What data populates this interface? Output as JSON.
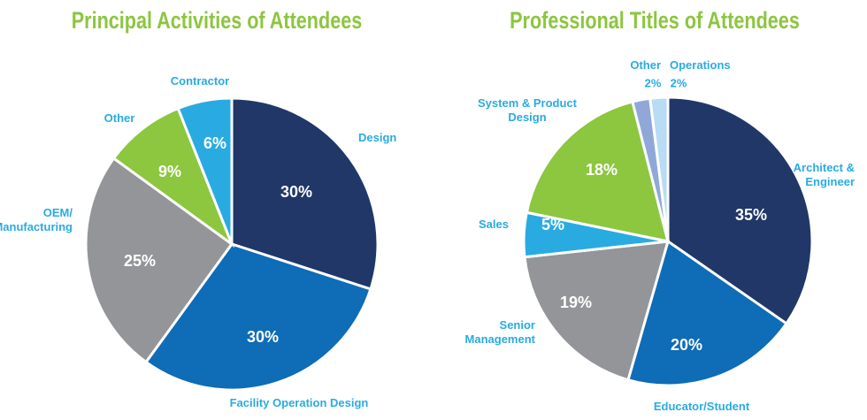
{
  "chart_data": [
    {
      "type": "pie",
      "title": "Principal Activities of Attendees",
      "slices": [
        {
          "label": [
            "Design"
          ],
          "value": 30,
          "display": "30%",
          "color": "#203768"
        },
        {
          "label": [
            "Facility Operation Design"
          ],
          "value": 30,
          "display": "30%",
          "color": "#0f6cb6"
        },
        {
          "label": [
            "OEM/",
            "Manufacturing"
          ],
          "value": 25,
          "display": "25%",
          "color": "#939598"
        },
        {
          "label": [
            "Other"
          ],
          "value": 9,
          "display": "9%",
          "color": "#8dc63f"
        },
        {
          "label": [
            "Contractor"
          ],
          "value": 6,
          "display": "6%",
          "color": "#29abe2"
        }
      ]
    },
    {
      "type": "pie",
      "title": "Professional Titles of Attendees",
      "slices": [
        {
          "label": [
            "Architect &",
            "Engineer"
          ],
          "value": 35,
          "display": "35%",
          "color": "#203768"
        },
        {
          "label": [
            "Educator/Student"
          ],
          "value": 20,
          "display": "20%",
          "color": "#0f6cb6"
        },
        {
          "label": [
            "Senior",
            "Management"
          ],
          "value": 19,
          "display": "19%",
          "color": "#939598"
        },
        {
          "label": [
            "Sales"
          ],
          "value": 5,
          "display": "5%",
          "color": "#29abe2"
        },
        {
          "label": [
            "System & Product",
            "Design"
          ],
          "value": 18,
          "display": "18%",
          "color": "#8dc63f"
        },
        {
          "label": [
            "Other"
          ],
          "value": 2,
          "display": "2%",
          "color": "#8fa8d8"
        },
        {
          "label": [
            "Operations"
          ],
          "value": 2,
          "display": "2%",
          "color": "#b9dcf5"
        }
      ]
    }
  ]
}
